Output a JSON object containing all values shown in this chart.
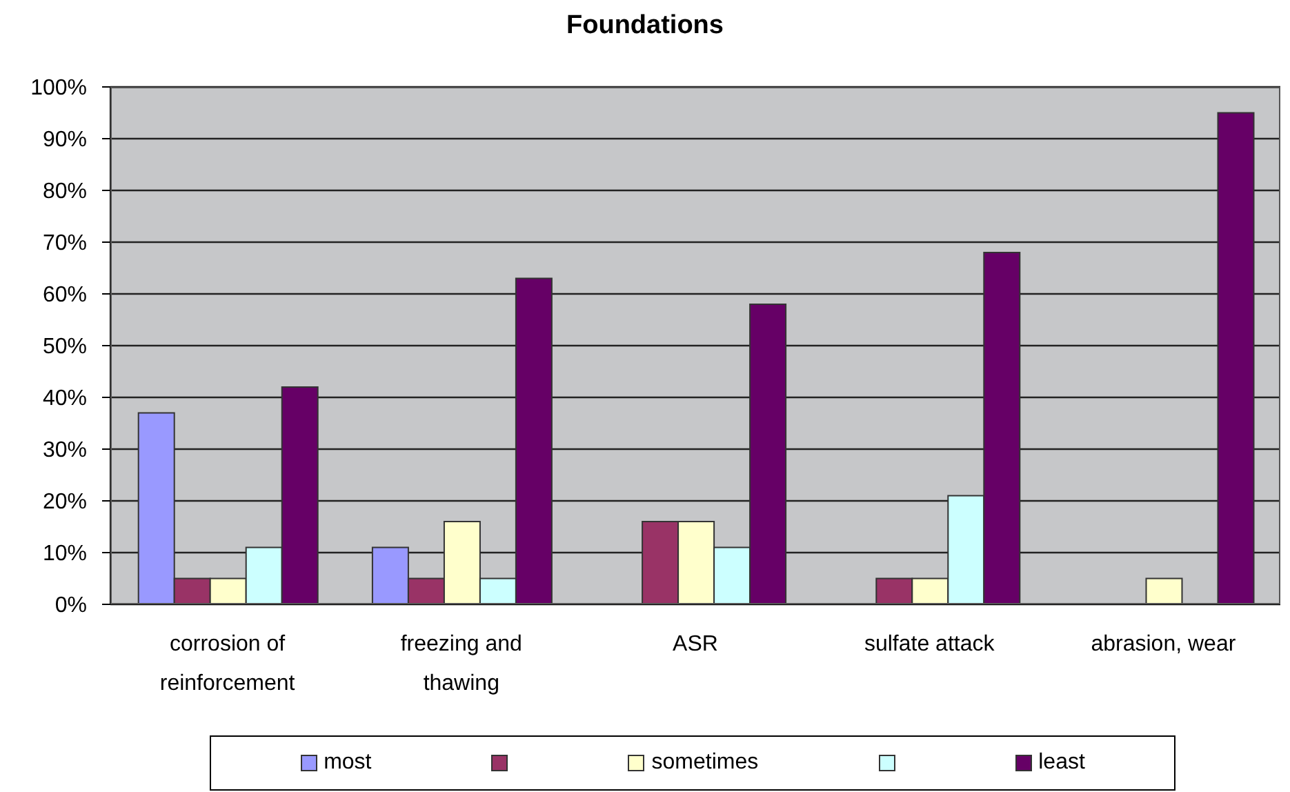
{
  "chart_data": {
    "type": "bar",
    "title": "Foundations",
    "categories": [
      "corrosion of reinforcement",
      "freezing and thawing",
      "ASR",
      "sulfate attack",
      "abrasion, wear"
    ],
    "series": [
      {
        "name": "most",
        "color": "#9999ff",
        "values": [
          37,
          11,
          0,
          0,
          0
        ]
      },
      {
        "color": "#993366",
        "values": [
          5,
          5,
          16,
          5,
          0
        ]
      },
      {
        "name": "sometimes",
        "color": "#ffffcc",
        "values": [
          5,
          16,
          16,
          5,
          5
        ]
      },
      {
        "color": "#ccffff",
        "values": [
          11,
          5,
          11,
          21,
          0
        ]
      },
      {
        "name": "least",
        "color": "#660066",
        "values": [
          42,
          63,
          58,
          68,
          95
        ]
      }
    ],
    "ylim": [
      0,
      100
    ],
    "yticks": [
      {
        "value": 0,
        "label": "0%"
      },
      {
        "value": 10,
        "label": "10%"
      },
      {
        "value": 20,
        "label": "20%"
      },
      {
        "value": 30,
        "label": "30%"
      },
      {
        "value": 40,
        "label": "40%"
      },
      {
        "value": 50,
        "label": "50%"
      },
      {
        "value": 60,
        "label": "60%"
      },
      {
        "value": 70,
        "label": "70%"
      },
      {
        "value": 80,
        "label": "80%"
      },
      {
        "value": 90,
        "label": "90%"
      },
      {
        "value": 100,
        "label": "100%"
      }
    ],
    "grid": "y",
    "legend": "bottom"
  }
}
